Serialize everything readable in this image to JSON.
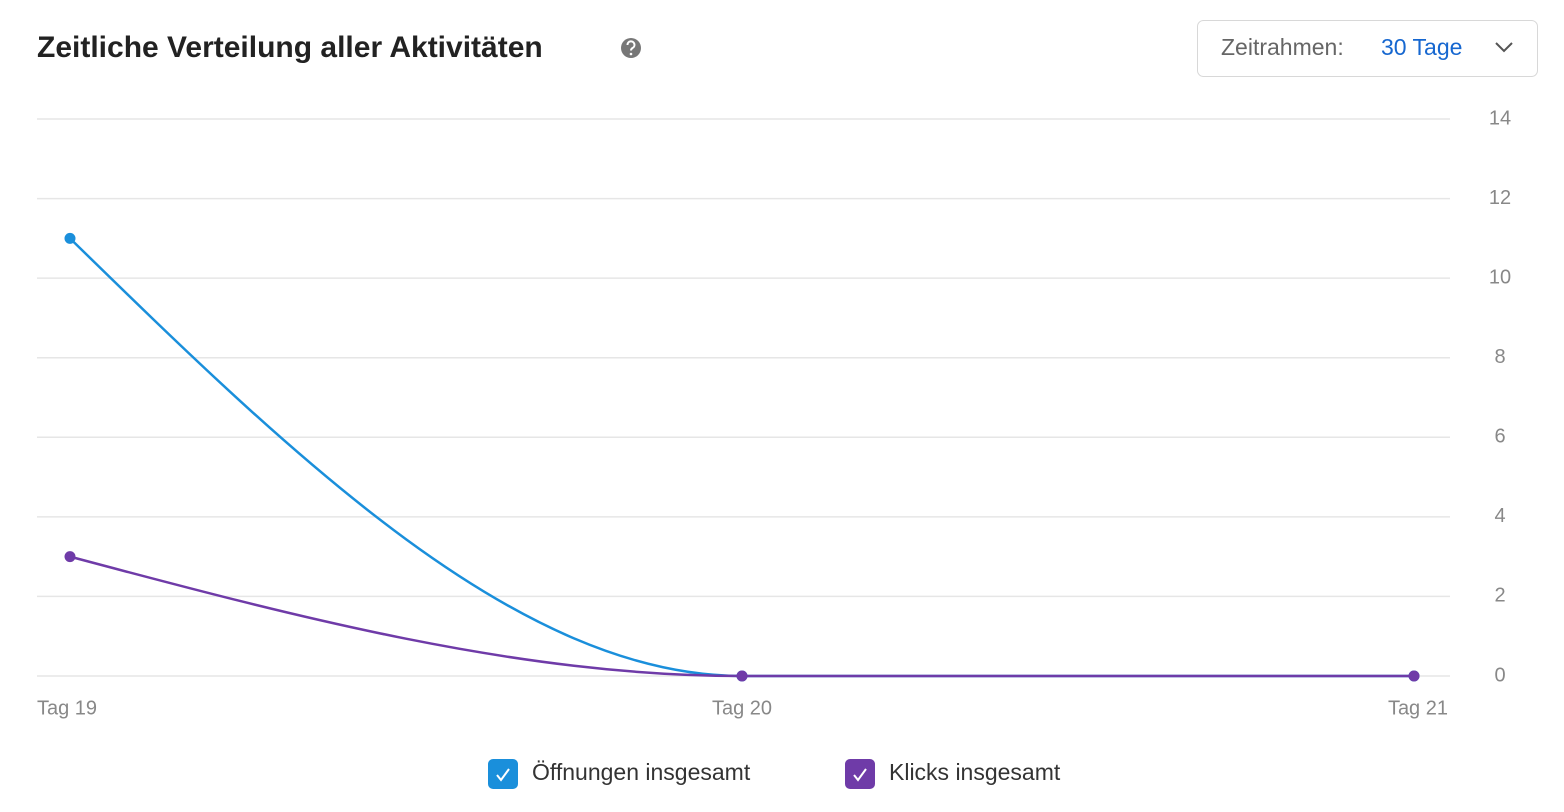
{
  "chart_data": {
    "type": "line",
    "title": "Zeitliche Verteilung aller Aktivitäten",
    "timeframe_label": "Zeitrahmen:",
    "timeframe_value": "30 Tage",
    "categories": [
      "Tag 19",
      "Tag 20",
      "Tag 21"
    ],
    "series": [
      {
        "name": "Öffnungen insgesamt",
        "color": "#1a8fdb",
        "values": [
          11,
          0,
          0
        ]
      },
      {
        "name": "Klicks insgesamt",
        "color": "#6f3ba8",
        "values": [
          3,
          0,
          0
        ]
      }
    ],
    "ylim": [
      0,
      14
    ],
    "yticks": [
      0,
      2,
      4,
      6,
      8,
      10,
      12,
      14
    ],
    "grid": true,
    "smooth": true
  }
}
